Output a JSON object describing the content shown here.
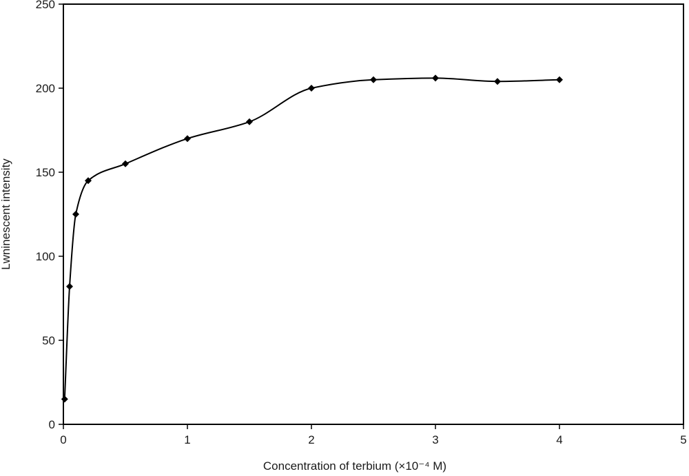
{
  "chart_data": {
    "type": "line",
    "title": "",
    "xlabel": "Concentration of terbium (×10⁻⁴ M)",
    "ylabel": "Lwninescent intensity",
    "xlim": [
      0,
      5
    ],
    "ylim": [
      0,
      250
    ],
    "xticks": [
      0,
      1,
      2,
      3,
      4,
      5
    ],
    "yticks": [
      0,
      50,
      100,
      150,
      200,
      250
    ],
    "grid": false,
    "legend": "none",
    "smooth": true,
    "marker": "diamond",
    "color": "#000000",
    "series": [
      {
        "x": [
          0.01,
          0.05,
          0.1,
          0.2,
          0.5,
          1.0,
          1.5,
          2.0,
          2.5,
          3.0,
          3.5,
          4.0
        ],
        "y": [
          15,
          82,
          125,
          145,
          155,
          170,
          180,
          200,
          205,
          206,
          204,
          205
        ]
      }
    ]
  }
}
